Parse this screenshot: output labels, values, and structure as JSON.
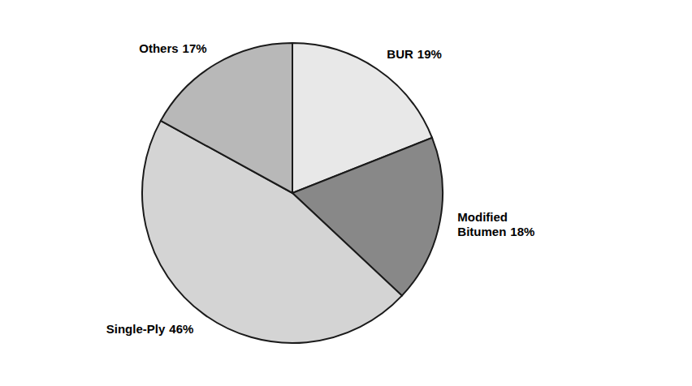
{
  "chart_data": {
    "type": "pie",
    "categories": [
      "BUR",
      "Modified\nBitumen",
      "Single-Ply",
      "Others"
    ],
    "values": [
      19,
      18,
      46,
      17
    ],
    "value_labels": [
      "19%",
      "18%",
      "46%",
      "17%"
    ],
    "colors": [
      "#e8e8e8",
      "#888888",
      "#d4d4d4",
      "#b8b8b8"
    ],
    "data_labels": true
  }
}
